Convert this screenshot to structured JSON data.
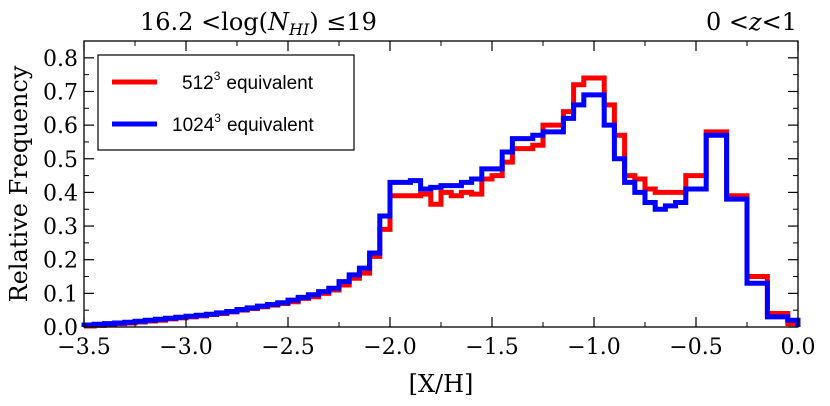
{
  "chart_data": {
    "type": "step",
    "title_left": "16.2 < log(N_HI) ≤ 19",
    "title_left_parts": {
      "prefix": "16.2 <log(",
      "var": "N",
      "sub": "HI",
      "suffix": ") ≤19"
    },
    "title_right_parts": {
      "left": "0 <",
      "var": "z",
      "right": "<1"
    },
    "xlabel": "[X/H]",
    "ylabel": "Relative Frequency",
    "xlim": [
      -3.5,
      0.0
    ],
    "ylim": [
      0.0,
      0.85
    ],
    "xticks": [
      -3.5,
      -3.0,
      -2.5,
      -2.0,
      -1.5,
      -1.0,
      -0.5,
      0.0
    ],
    "xtick_labels": [
      "−3.5",
      "−3.0",
      "−2.5",
      "−2.0",
      "−1.5",
      "−1.0",
      "−0.5",
      "0.0"
    ],
    "yticks": [
      0.0,
      0.1,
      0.2,
      0.3,
      0.4,
      0.5,
      0.6,
      0.7,
      0.8
    ],
    "ytick_labels": [
      "0.0",
      "0.1",
      "0.2",
      "0.3",
      "0.4",
      "0.5",
      "0.6",
      "0.7",
      "0.8"
    ],
    "bin_edges": [
      -3.5,
      -3.45,
      -3.4,
      -3.35,
      -3.3,
      -3.25,
      -3.2,
      -3.15,
      -3.1,
      -3.05,
      -3.0,
      -2.95,
      -2.9,
      -2.85,
      -2.8,
      -2.75,
      -2.7,
      -2.65,
      -2.6,
      -2.55,
      -2.5,
      -2.45,
      -2.4,
      -2.35,
      -2.3,
      -2.25,
      -2.2,
      -2.15,
      -2.1,
      -2.05,
      -2.0,
      -1.95,
      -1.9,
      -1.85,
      -1.8,
      -1.75,
      -1.7,
      -1.65,
      -1.6,
      -1.55,
      -1.5,
      -1.45,
      -1.4,
      -1.35,
      -1.3,
      -1.25,
      -1.2,
      -1.15,
      -1.1,
      -1.05,
      -1.0,
      -0.95,
      -0.9,
      -0.85,
      -0.8,
      -0.75,
      -0.7,
      -0.65,
      -0.6,
      -0.55,
      -0.5,
      -0.45,
      -0.4,
      -0.35,
      -0.3,
      -0.25,
      -0.2,
      -0.15,
      -0.1,
      -0.05,
      0.0
    ],
    "series": [
      {
        "name": "512^3 equivalent",
        "color": "#ff0000",
        "values": [
          0.003,
          0.005,
          0.007,
          0.01,
          0.012,
          0.015,
          0.018,
          0.02,
          0.024,
          0.027,
          0.03,
          0.033,
          0.037,
          0.04,
          0.045,
          0.05,
          0.055,
          0.06,
          0.065,
          0.07,
          0.075,
          0.085,
          0.09,
          0.1,
          0.11,
          0.125,
          0.145,
          0.16,
          0.21,
          0.29,
          0.39,
          0.39,
          0.39,
          0.395,
          0.365,
          0.4,
          0.39,
          0.4,
          0.395,
          0.44,
          0.45,
          0.49,
          0.53,
          0.53,
          0.54,
          0.6,
          0.6,
          0.64,
          0.72,
          0.74,
          0.74,
          0.66,
          0.57,
          0.45,
          0.44,
          0.41,
          0.4,
          0.4,
          0.4,
          0.45,
          0.45,
          0.58,
          0.58,
          0.39,
          0.39,
          0.15,
          0.15,
          0.04,
          0.04,
          0.01
        ]
      },
      {
        "name": "1024^3 equivalent",
        "color": "#0000ff",
        "values": [
          0.006,
          0.008,
          0.01,
          0.012,
          0.014,
          0.017,
          0.02,
          0.023,
          0.026,
          0.029,
          0.032,
          0.035,
          0.038,
          0.042,
          0.046,
          0.052,
          0.057,
          0.062,
          0.067,
          0.072,
          0.08,
          0.088,
          0.096,
          0.105,
          0.115,
          0.135,
          0.155,
          0.175,
          0.22,
          0.33,
          0.43,
          0.43,
          0.435,
          0.41,
          0.415,
          0.42,
          0.42,
          0.43,
          0.44,
          0.47,
          0.47,
          0.52,
          0.56,
          0.56,
          0.57,
          0.58,
          0.58,
          0.62,
          0.66,
          0.69,
          0.69,
          0.6,
          0.5,
          0.43,
          0.4,
          0.37,
          0.35,
          0.36,
          0.37,
          0.41,
          0.41,
          0.57,
          0.57,
          0.38,
          0.38,
          0.13,
          0.13,
          0.03,
          0.03,
          0.02
        ]
      }
    ],
    "legend": {
      "location": "upper left",
      "entries": [
        {
          "base": "512",
          "exp": "3",
          "text": "equivalent"
        },
        {
          "base": "1024",
          "exp": "3",
          "text": "equivalent"
        }
      ]
    }
  }
}
